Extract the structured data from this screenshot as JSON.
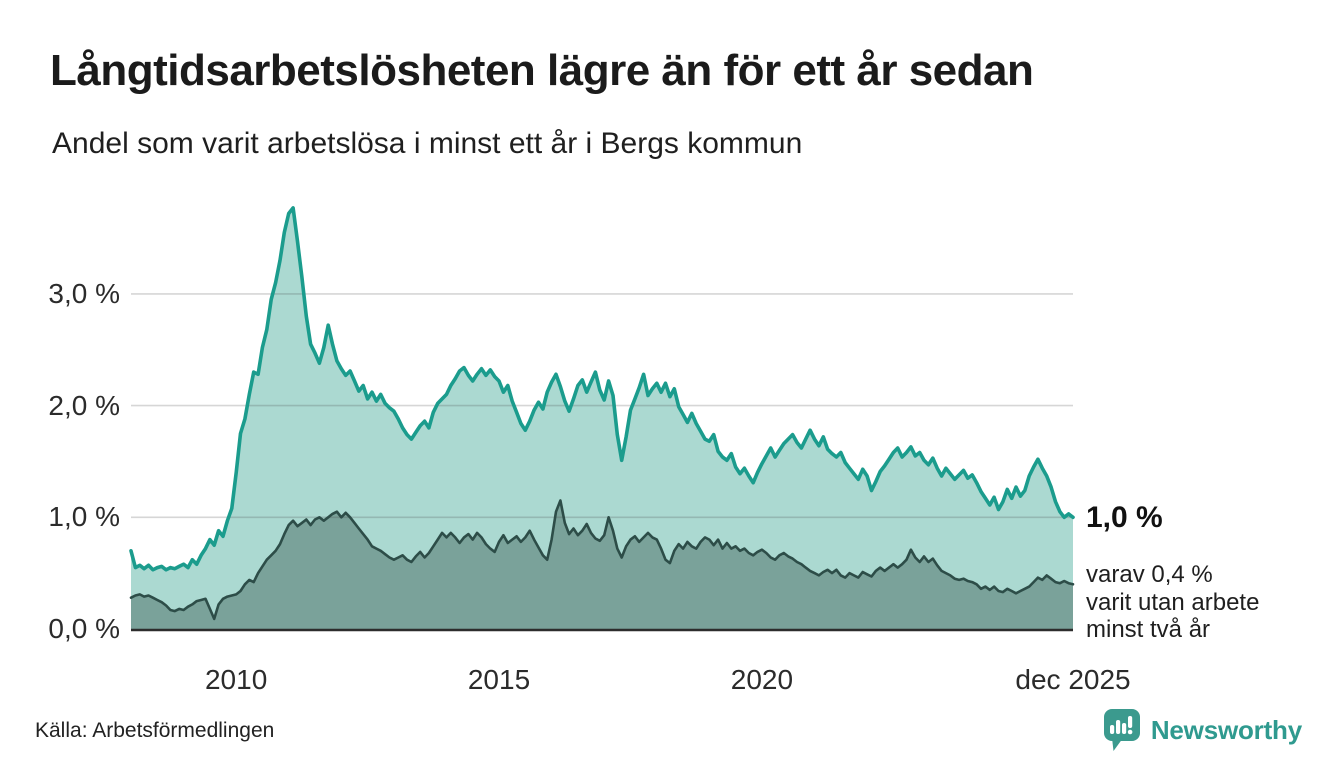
{
  "header": {
    "title": "Långtidsarbetslösheten lägre än för ett år sedan",
    "subtitle": "Andel som varit arbetslösa i minst ett år i Bergs kommun"
  },
  "annotation": {
    "value": "1,0 %",
    "lines": [
      "varav 0,4 %",
      "varit utan arbete",
      "minst två år"
    ]
  },
  "footer": {
    "source": "Källa: Arbetsförmedlingen",
    "brand": "Newsworthy"
  },
  "colors": {
    "series1_line": "#1b9c8d",
    "series1_fill": "#abd9d1",
    "series2_line": "#2d4d48",
    "series2_fill": "#7aa29a",
    "gridline": "#d6d6d6",
    "axis_line": "#2d2d2d",
    "brand_teal": "#2f9a8f",
    "text": "#1c1c1c"
  },
  "chart_data": {
    "type": "area",
    "title": "Långtidsarbetslösheten lägre än för ett år sedan",
    "subtitle": "Andel som varit arbetslösa i minst ett år i Bergs kommun",
    "unit": "%",
    "x_start_year": 2008,
    "points_per_year": 12,
    "x_axis": {
      "range": [
        2008.0,
        2025.917
      ],
      "ticks": [
        {
          "x": 2010.0,
          "label": "2010"
        },
        {
          "x": 2015.0,
          "label": "2015"
        },
        {
          "x": 2020.0,
          "label": "2020"
        },
        {
          "x": 2025.917,
          "label": "dec 2025"
        }
      ]
    },
    "y_axis": {
      "range": [
        0,
        3.9
      ],
      "gridlines": true,
      "ticks": [
        {
          "y": 0,
          "label": "0,0 %"
        },
        {
          "y": 1,
          "label": "1,0 %"
        },
        {
          "y": 2,
          "label": "2,0 %"
        },
        {
          "y": 3,
          "label": "3,0 %"
        }
      ]
    },
    "legend_position": "none",
    "annotations": [
      {
        "text": "1,0 %",
        "series": "minst ett år",
        "at_end": true
      },
      {
        "text": "varav 0,4 % varit utan arbete minst två år",
        "series": "minst två år",
        "at_end": true
      }
    ],
    "series": [
      {
        "name": "Andel arbetslösa minst ett år",
        "end_value_label": "1,0 %",
        "line_color": "#1b9c8d",
        "fill_color": "#abd9d1",
        "values": [
          0.7,
          0.55,
          0.57,
          0.54,
          0.57,
          0.53,
          0.55,
          0.56,
          0.53,
          0.55,
          0.54,
          0.56,
          0.58,
          0.55,
          0.62,
          0.58,
          0.66,
          0.72,
          0.8,
          0.75,
          0.88,
          0.83,
          0.97,
          1.08,
          1.4,
          1.75,
          1.88,
          2.1,
          2.3,
          2.28,
          2.52,
          2.68,
          2.95,
          3.1,
          3.3,
          3.55,
          3.72,
          3.77,
          3.47,
          3.15,
          2.8,
          2.55,
          2.47,
          2.38,
          2.52,
          2.72,
          2.55,
          2.4,
          2.33,
          2.27,
          2.31,
          2.22,
          2.13,
          2.18,
          2.06,
          2.12,
          2.04,
          2.1,
          2.02,
          1.98,
          1.95,
          1.88,
          1.8,
          1.74,
          1.7,
          1.76,
          1.82,
          1.86,
          1.8,
          1.94,
          2.02,
          2.06,
          2.1,
          2.18,
          2.24,
          2.31,
          2.34,
          2.27,
          2.22,
          2.28,
          2.33,
          2.27,
          2.32,
          2.26,
          2.22,
          2.12,
          2.18,
          2.04,
          1.94,
          1.84,
          1.78,
          1.86,
          1.96,
          2.03,
          1.97,
          2.12,
          2.21,
          2.28,
          2.17,
          2.04,
          1.95,
          2.06,
          2.18,
          2.23,
          2.12,
          2.21,
          2.3,
          2.14,
          2.05,
          2.22,
          2.09,
          1.74,
          1.51,
          1.72,
          1.96,
          2.06,
          2.16,
          2.28,
          2.09,
          2.15,
          2.2,
          2.12,
          2.2,
          2.08,
          2.15,
          1.99,
          1.92,
          1.85,
          1.93,
          1.84,
          1.77,
          1.7,
          1.68,
          1.74,
          1.59,
          1.54,
          1.51,
          1.57,
          1.45,
          1.39,
          1.44,
          1.37,
          1.31,
          1.4,
          1.48,
          1.55,
          1.62,
          1.54,
          1.6,
          1.66,
          1.7,
          1.74,
          1.67,
          1.62,
          1.7,
          1.78,
          1.7,
          1.64,
          1.72,
          1.61,
          1.57,
          1.54,
          1.58,
          1.49,
          1.44,
          1.39,
          1.34,
          1.43,
          1.37,
          1.24,
          1.32,
          1.41,
          1.46,
          1.52,
          1.58,
          1.62,
          1.54,
          1.58,
          1.63,
          1.55,
          1.58,
          1.51,
          1.47,
          1.53,
          1.44,
          1.37,
          1.44,
          1.39,
          1.34,
          1.38,
          1.42,
          1.35,
          1.38,
          1.31,
          1.23,
          1.17,
          1.11,
          1.18,
          1.07,
          1.14,
          1.25,
          1.17,
          1.27,
          1.19,
          1.24,
          1.37,
          1.45,
          1.52,
          1.44,
          1.37,
          1.27,
          1.14,
          1.05,
          1.0,
          1.03,
          1.0
        ]
      },
      {
        "name": "Andel arbetslösa minst två år",
        "end_value_label": "0,4 %",
        "line_color": "#2d4d48",
        "fill_color": "#7aa29a",
        "values": [
          0.28,
          0.3,
          0.31,
          0.29,
          0.3,
          0.28,
          0.26,
          0.24,
          0.21,
          0.17,
          0.16,
          0.18,
          0.17,
          0.2,
          0.22,
          0.25,
          0.26,
          0.27,
          0.18,
          0.09,
          0.22,
          0.27,
          0.29,
          0.3,
          0.31,
          0.34,
          0.4,
          0.44,
          0.42,
          0.5,
          0.56,
          0.62,
          0.66,
          0.7,
          0.76,
          0.85,
          0.93,
          0.97,
          0.92,
          0.95,
          0.98,
          0.93,
          0.98,
          1.0,
          0.97,
          1.0,
          1.03,
          1.05,
          1.0,
          1.04,
          1.0,
          0.95,
          0.9,
          0.85,
          0.8,
          0.74,
          0.72,
          0.7,
          0.67,
          0.64,
          0.62,
          0.64,
          0.66,
          0.62,
          0.6,
          0.65,
          0.69,
          0.64,
          0.68,
          0.74,
          0.8,
          0.86,
          0.82,
          0.86,
          0.82,
          0.77,
          0.82,
          0.85,
          0.8,
          0.86,
          0.82,
          0.76,
          0.72,
          0.69,
          0.78,
          0.84,
          0.77,
          0.8,
          0.83,
          0.78,
          0.82,
          0.88,
          0.8,
          0.73,
          0.66,
          0.62,
          0.8,
          1.05,
          1.15,
          0.95,
          0.85,
          0.9,
          0.84,
          0.88,
          0.94,
          0.86,
          0.81,
          0.79,
          0.84,
          1.0,
          0.88,
          0.72,
          0.64,
          0.74,
          0.8,
          0.83,
          0.78,
          0.82,
          0.86,
          0.82,
          0.8,
          0.72,
          0.62,
          0.59,
          0.7,
          0.76,
          0.72,
          0.78,
          0.74,
          0.72,
          0.78,
          0.82,
          0.8,
          0.75,
          0.8,
          0.72,
          0.77,
          0.72,
          0.74,
          0.7,
          0.72,
          0.68,
          0.66,
          0.69,
          0.71,
          0.68,
          0.64,
          0.62,
          0.66,
          0.68,
          0.65,
          0.63,
          0.6,
          0.58,
          0.55,
          0.52,
          0.5,
          0.48,
          0.51,
          0.53,
          0.5,
          0.53,
          0.48,
          0.46,
          0.5,
          0.48,
          0.46,
          0.51,
          0.49,
          0.47,
          0.52,
          0.55,
          0.52,
          0.55,
          0.58,
          0.55,
          0.58,
          0.62,
          0.71,
          0.64,
          0.6,
          0.65,
          0.6,
          0.63,
          0.57,
          0.52,
          0.5,
          0.48,
          0.45,
          0.44,
          0.45,
          0.43,
          0.42,
          0.4,
          0.36,
          0.38,
          0.35,
          0.38,
          0.34,
          0.33,
          0.36,
          0.34,
          0.32,
          0.34,
          0.36,
          0.38,
          0.42,
          0.46,
          0.44,
          0.48,
          0.45,
          0.42,
          0.41,
          0.43,
          0.41,
          0.4
        ]
      }
    ]
  }
}
